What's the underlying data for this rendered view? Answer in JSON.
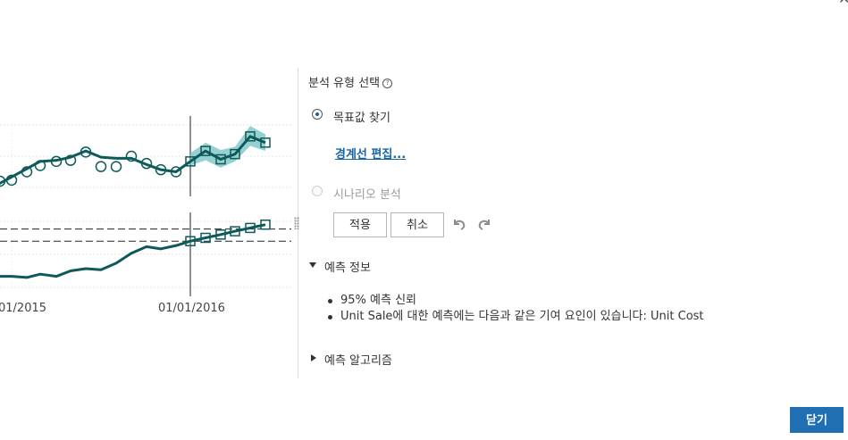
{
  "dialog": {
    "close_icon": "close-icon",
    "close_glyph": "✕"
  },
  "chart_data": {
    "type": "line",
    "title": "",
    "x_tick_labels": [
      "01/2015",
      "01/01/2016"
    ],
    "forecast_start_label": "01/01/2016",
    "charts": [
      {
        "name": "target",
        "series_history": [
          {
            "x": -4,
            "y": 6
          },
          {
            "x": 0,
            "y": 4
          },
          {
            "x": 13,
            "y": 10
          },
          {
            "x": 30,
            "y": 18
          },
          {
            "x": 45,
            "y": 25
          },
          {
            "x": 63,
            "y": 26
          },
          {
            "x": 79,
            "y": 29
          },
          {
            "x": 96,
            "y": 35
          },
          {
            "x": 113,
            "y": 29
          },
          {
            "x": 130,
            "y": 28
          },
          {
            "x": 147,
            "y": 28
          },
          {
            "x": 164,
            "y": 22
          },
          {
            "x": 180,
            "y": 17
          },
          {
            "x": 197,
            "y": 15
          },
          {
            "x": 213,
            "y": 25
          }
        ],
        "history_markers": [
          {
            "x": 0,
            "y": 6
          },
          {
            "x": 13,
            "y": 7
          },
          {
            "x": 30,
            "y": 15
          },
          {
            "x": 45,
            "y": 21
          },
          {
            "x": 63,
            "y": 25
          },
          {
            "x": 79,
            "y": 26
          },
          {
            "x": 96,
            "y": 34
          },
          {
            "x": 113,
            "y": 20
          },
          {
            "x": 130,
            "y": 20
          },
          {
            "x": 147,
            "y": 30
          },
          {
            "x": 164,
            "y": 23
          },
          {
            "x": 180,
            "y": 17
          },
          {
            "x": 197,
            "y": 15
          }
        ],
        "forecast": [
          {
            "x": 213,
            "y": 25
          },
          {
            "x": 230,
            "y": 35
          },
          {
            "x": 247,
            "y": 27
          },
          {
            "x": 263,
            "y": 32
          },
          {
            "x": 280,
            "y": 49
          },
          {
            "x": 297,
            "y": 43
          }
        ],
        "forecast_band": [
          {
            "x": 213,
            "lo": 21,
            "hi": 33
          },
          {
            "x": 230,
            "lo": 26,
            "hi": 43
          },
          {
            "x": 247,
            "lo": 19,
            "hi": 36
          },
          {
            "x": 263,
            "lo": 25,
            "hi": 39
          },
          {
            "x": 280,
            "lo": 40,
            "hi": 59
          },
          {
            "x": 297,
            "lo": 35,
            "hi": 51
          }
        ],
        "y_range": [
          0,
          60
        ]
      },
      {
        "name": "driver",
        "series_history": [
          {
            "x": -4,
            "y": 10
          },
          {
            "x": 13,
            "y": 10
          },
          {
            "x": 30,
            "y": 9
          },
          {
            "x": 45,
            "y": 12
          },
          {
            "x": 63,
            "y": 10
          },
          {
            "x": 79,
            "y": 15
          },
          {
            "x": 96,
            "y": 17
          },
          {
            "x": 113,
            "y": 16
          },
          {
            "x": 130,
            "y": 22
          },
          {
            "x": 147,
            "y": 31
          },
          {
            "x": 164,
            "y": 37
          },
          {
            "x": 180,
            "y": 35
          },
          {
            "x": 197,
            "y": 38
          },
          {
            "x": 213,
            "y": 42
          }
        ],
        "forecast": [
          {
            "x": 213,
            "y": 42
          },
          {
            "x": 230,
            "y": 45
          },
          {
            "x": 247,
            "y": 48
          },
          {
            "x": 263,
            "y": 51
          },
          {
            "x": 280,
            "y": 54
          },
          {
            "x": 297,
            "y": 57
          }
        ],
        "reference_lines": [
          53,
          42
        ],
        "y_range": [
          0,
          60
        ]
      }
    ]
  },
  "panel": {
    "title": "분석 유형 선택",
    "help_glyph": "?",
    "radio_target_label": "목표값 찾기",
    "radio_target_selected": true,
    "edit_boundary_link": "경계선 편집...",
    "radio_scenario_label": "시나리오 분석",
    "apply_label": "적용",
    "cancel_label": "취소",
    "undo_icon": "undo-icon",
    "redo_icon": "redo-icon",
    "forecast_info_heading": "예측 정보",
    "forecast_info_items": [
      "95% 예측 신뢰",
      "Unit Sale에 대한 예측에는 다음과 같은 기여 요인이 있습니다: Unit Cost"
    ],
    "algorithm_heading": "예측 알고리즘"
  },
  "footer": {
    "close_label": "닫기"
  },
  "colors": {
    "series": "#0e5a5a",
    "band": "#7cc6c6",
    "accent": "#1f6fb2",
    "link": "#1565a7"
  }
}
